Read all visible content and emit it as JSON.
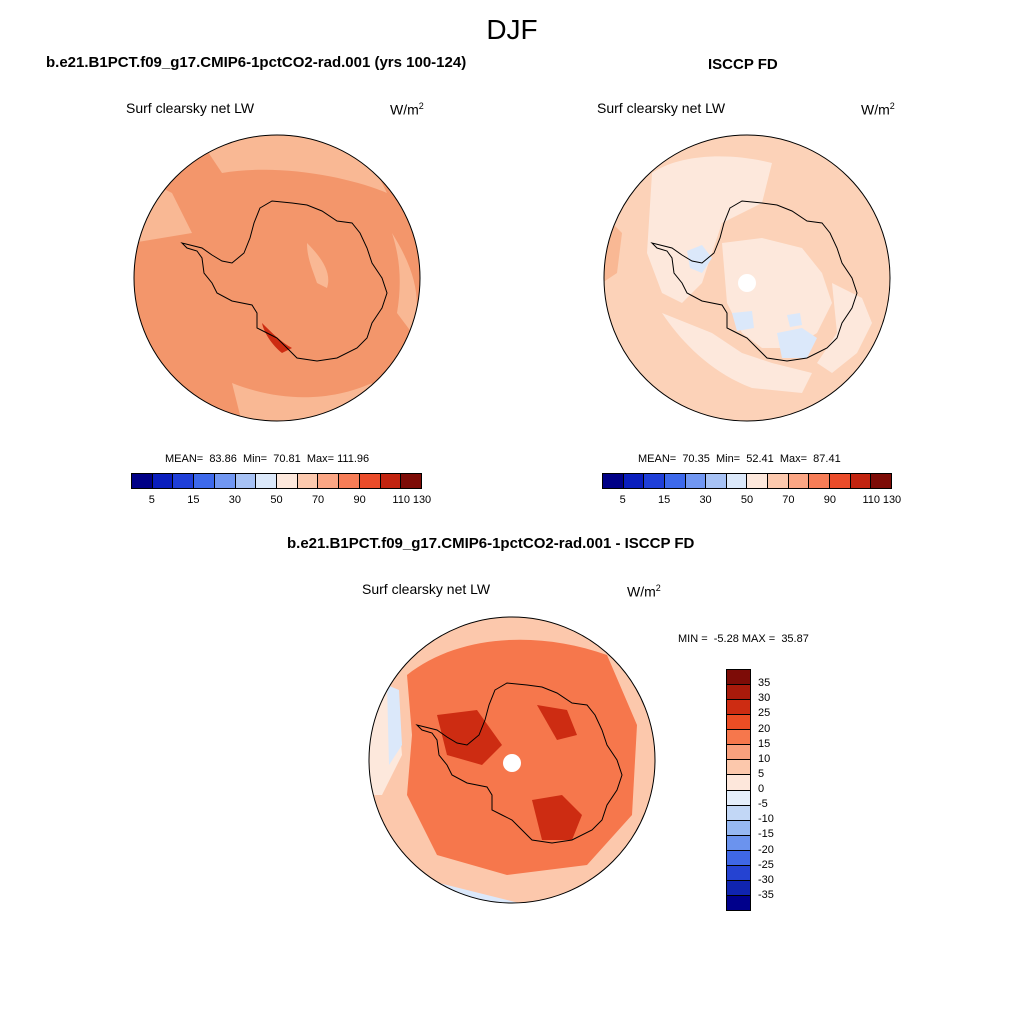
{
  "figure": {
    "title": "DJF"
  },
  "panels": [
    {
      "case_title": "b.e21.B1PCT.f09_g17.CMIP6-1pctCO2-rad.001 (yrs 100-124)",
      "variable": "Surf clearsky net LW",
      "unit_base": "W/m",
      "unit_exp": "2",
      "stats_text": "MEAN=  83.86  Min=  70.81  Max= 111.96",
      "colorbar_ticks": [
        "5",
        "15",
        "30",
        "50",
        "70",
        "90",
        "110",
        "130"
      ]
    },
    {
      "case_title": "ISCCP FD",
      "variable": "Surf clearsky net LW",
      "unit_base": "W/m",
      "unit_exp": "2",
      "stats_text": "MEAN=  70.35  Min=  52.41  Max=  87.41",
      "colorbar_ticks": [
        "5",
        "15",
        "30",
        "50",
        "70",
        "90",
        "110",
        "130"
      ]
    },
    {
      "case_title": "b.e21.B1PCT.f09_g17.CMIP6-1pctCO2-rad.001 - ISCCP FD",
      "variable": "Surf clearsky net LW",
      "unit_base": "W/m",
      "unit_exp": "2",
      "stats_text": "MIN =  -5.28 MAX =  35.87",
      "colorbar_ticks": [
        "35",
        "30",
        "25",
        "20",
        "15",
        "10",
        "5",
        "0",
        "-5",
        "-10",
        "-15",
        "-20",
        "-25",
        "-30",
        "-35"
      ]
    }
  ],
  "colors": {
    "abs_scale": [
      "#000086",
      "#0a1ebd",
      "#1f3fd8",
      "#3d69eb",
      "#7197f2",
      "#a7c2f5",
      "#dbe8fa",
      "#fde8dc",
      "#fcc9ae",
      "#fba684",
      "#f67d57",
      "#ea4c2a",
      "#c22410",
      "#7d0c07"
    ],
    "diff_scale": [
      "#7d0c07",
      "#a81a0b",
      "#cd2c12",
      "#ec4d24",
      "#f6774c",
      "#f9a07d",
      "#fcc8ac",
      "#fde7db",
      "#e4eefb",
      "#c2d7f6",
      "#96b8f2",
      "#6b93ee",
      "#3f67e6",
      "#2543d2",
      "#1024b0",
      "#00008b"
    ],
    "abs_map_fill": "#f3966b",
    "abs_map_light": "#f9b894",
    "obs_map_fill": "#fcd2b8",
    "obs_map_light": "#fde8dc",
    "obs_map_blue": "#dbe8fa",
    "diff_map_fill": "#f6774c",
    "diff_map_light": "#fcc8ac",
    "diff_map_dark": "#cd2c12",
    "coast": "#000000"
  }
}
